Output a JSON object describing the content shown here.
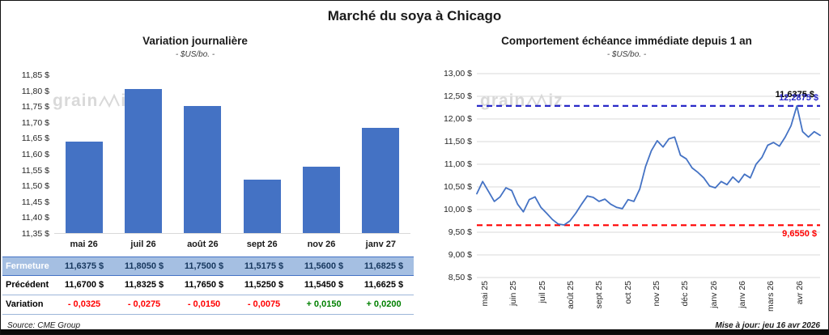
{
  "header": {
    "title": "Marché du soya à Chicago"
  },
  "left_panel": {
    "title": "Variation journalière",
    "subtitle": "- $US/bo. -"
  },
  "right_panel": {
    "title": "Comportement échéance immédiate depuis 1 an",
    "subtitle": "- $US/bo. -"
  },
  "watermark": {
    "pre": "grain",
    "post": "iz"
  },
  "footer": {
    "source": "Source: CME Group",
    "updated": "Mise à jour: jeu 16 avr 2026"
  },
  "table": {
    "rows": [
      {
        "style": "fermeture",
        "label": "Fermeture",
        "values": [
          "11,6375  $",
          "11,8050  $",
          "11,7500  $",
          "11,5175  $",
          "11,5600  $",
          "11,6825  $"
        ]
      },
      {
        "style": "precedent",
        "label": "Précédent",
        "values": [
          "11,6700  $",
          "11,8325  $",
          "11,7650  $",
          "11,5250  $",
          "11,5450  $",
          "11,6625  $"
        ]
      },
      {
        "style": "variation",
        "label": "Variation",
        "values": [
          "- 0,0325",
          "- 0,0275",
          "- 0,0150",
          "- 0,0075",
          "+ 0,0150",
          "+ 0,0200"
        ],
        "colors": [
          "neg",
          "neg",
          "neg",
          "neg",
          "pos",
          "pos"
        ]
      }
    ]
  },
  "chart_data": [
    {
      "type": "bar",
      "title": "Variation journalière",
      "units": "$US/bo.",
      "categories": [
        "mai 26",
        "juil 26",
        "août 26",
        "sept 26",
        "nov 26",
        "janv 27"
      ],
      "values": [
        11.6375,
        11.805,
        11.75,
        11.5175,
        11.56,
        11.6825
      ],
      "ylim": [
        11.35,
        11.85
      ],
      "ytick_labels": [
        "11,85 $",
        "11,80 $",
        "11,75 $",
        "11,70 $",
        "11,65 $",
        "11,60 $",
        "11,55 $",
        "11,50 $",
        "11,45 $",
        "11,40 $",
        "11,35 $"
      ],
      "bar_color": "#4472C4",
      "grid": false,
      "legend": "none"
    },
    {
      "type": "line",
      "title": "Comportement échéance immédiate depuis 1 an",
      "units": "$US/bo.",
      "x_labels": [
        "mai 25",
        "juin 25",
        "juil 25",
        "août 25",
        "sept 25",
        "oct 25",
        "nov 25",
        "déc 25",
        "janv 26",
        "janv 26",
        "mars 26",
        "avr 26"
      ],
      "values": [
        10.35,
        10.62,
        10.4,
        10.18,
        10.28,
        10.48,
        10.42,
        10.12,
        9.95,
        10.22,
        10.28,
        10.05,
        9.92,
        9.78,
        9.68,
        9.66,
        9.75,
        9.92,
        10.12,
        10.3,
        10.27,
        10.18,
        10.23,
        10.12,
        10.05,
        10.02,
        10.22,
        10.18,
        10.45,
        10.95,
        11.3,
        11.52,
        11.38,
        11.56,
        11.6,
        11.2,
        11.12,
        10.92,
        10.82,
        10.7,
        10.52,
        10.48,
        10.62,
        10.55,
        10.72,
        10.6,
        10.78,
        10.7,
        11.0,
        11.15,
        11.42,
        11.48,
        11.4,
        11.6,
        11.85,
        12.2875,
        11.72,
        11.6,
        11.72,
        11.6375
      ],
      "ylim": [
        8.5,
        13.0
      ],
      "ytick_labels": [
        "13,00 $",
        "12,50 $",
        "12,00 $",
        "11,50 $",
        "11,00 $",
        "10,50 $",
        "10,00 $",
        "9,50 $",
        "9,00 $",
        "8,50 $"
      ],
      "line_color": "#4472C4",
      "max_line": {
        "value": 12.2875,
        "label": "12,2875 $",
        "color": "#2929C8"
      },
      "min_line": {
        "value": 9.655,
        "label": "9,6550 $",
        "color": "#FF0000"
      },
      "current_label": "11,6375 $",
      "grid": true,
      "legend": "none"
    }
  ]
}
